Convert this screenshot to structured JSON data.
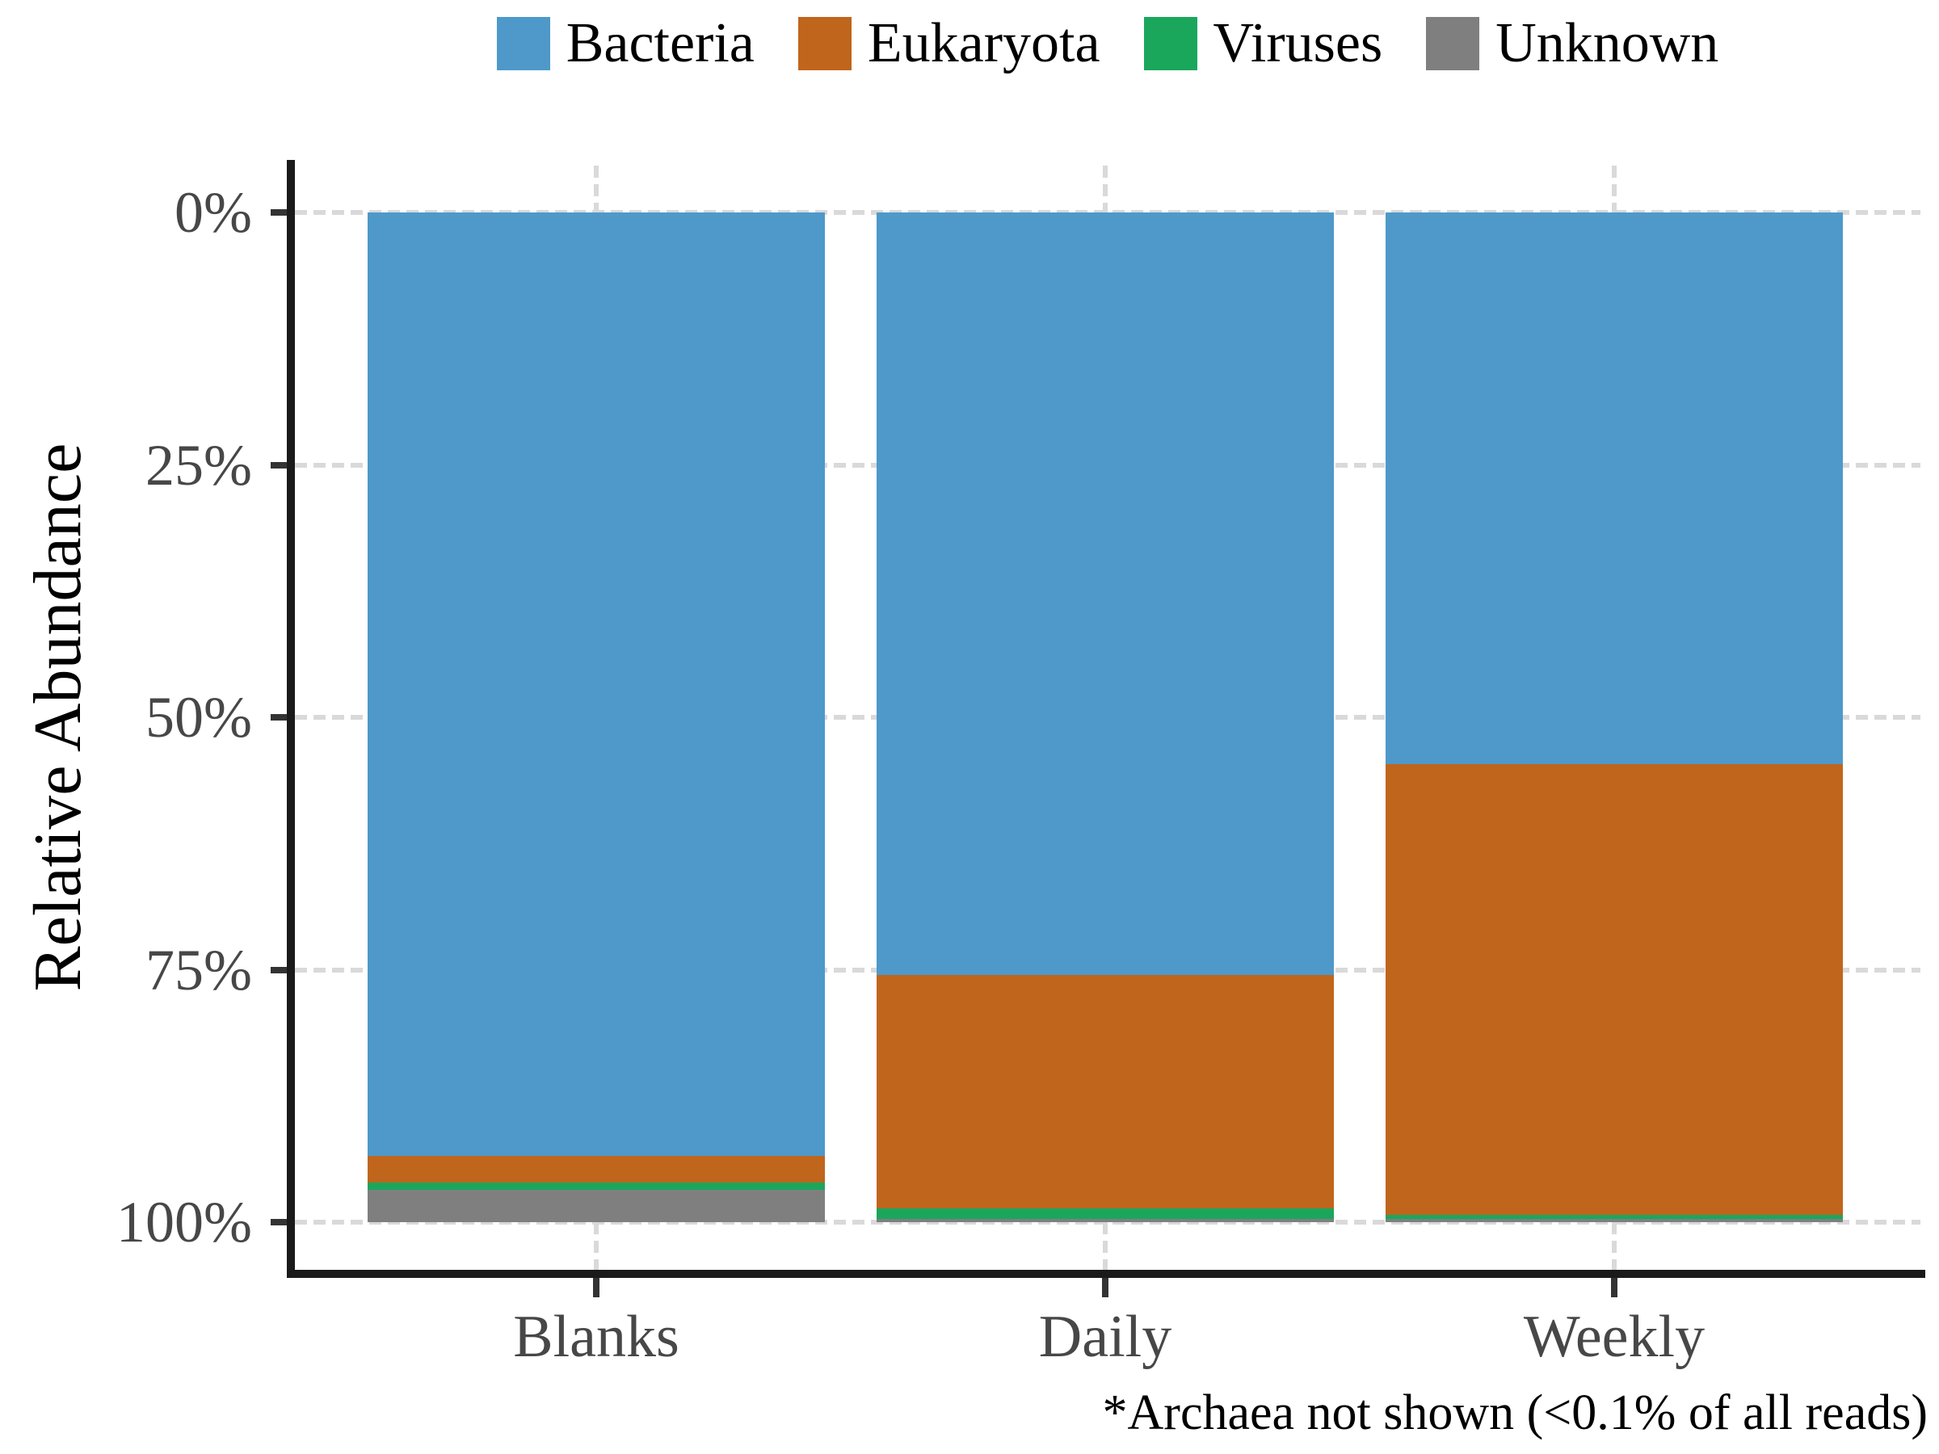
{
  "legend": {
    "items": [
      {
        "label": "Bacteria",
        "color": "#4e99c9"
      },
      {
        "label": "Eukaryota",
        "color": "#c0651c"
      },
      {
        "label": "Viruses",
        "color": "#1aa75c"
      },
      {
        "label": "Unknown",
        "color": "#7f7f7f"
      }
    ]
  },
  "y_axis": {
    "title": "Relative Abundance",
    "tick_labels": [
      "100%",
      "75%",
      "50%",
      "25%",
      "0%"
    ],
    "tick_values": [
      100,
      75,
      50,
      25,
      0
    ]
  },
  "x_axis": {
    "categories": [
      "Blanks",
      "Daily",
      "Weekly"
    ]
  },
  "caption": "*Archaea not shown (<0.1% of all reads)",
  "chart_data": {
    "type": "bar",
    "stacked": true,
    "unit": "percent_relative_abundance",
    "categories": [
      "Blanks",
      "Daily",
      "Weekly"
    ],
    "series": [
      {
        "name": "Bacteria",
        "color": "#4e99c9",
        "values": [
          93.4,
          75.5,
          54.6
        ]
      },
      {
        "name": "Eukaryota",
        "color": "#c0651c",
        "values": [
          2.7,
          23.1,
          44.7
        ]
      },
      {
        "name": "Viruses",
        "color": "#1aa75c",
        "values": [
          0.7,
          1.1,
          0.4
        ]
      },
      {
        "name": "Unknown",
        "color": "#7f7f7f",
        "values": [
          3.2,
          0.3,
          0.3
        ]
      }
    ],
    "stack_order_top_to_bottom": [
      "Bacteria",
      "Eukaryota",
      "Viruses",
      "Unknown"
    ],
    "title": "",
    "xlabel": "",
    "ylabel": "Relative Abundance",
    "ylim": [
      0,
      100
    ],
    "yticks": [
      0,
      25,
      50,
      75,
      100
    ],
    "grid": "dashed light-gray horizontal lines at y ticks; dashed vertical lines at category centers",
    "legend_position": "top"
  },
  "style": {
    "gridline_color": "#d9d9d9",
    "spine_color": "#1a1a1a",
    "tick_color": "#333333",
    "tick_label_color": "#474747",
    "background": "#ffffff"
  }
}
